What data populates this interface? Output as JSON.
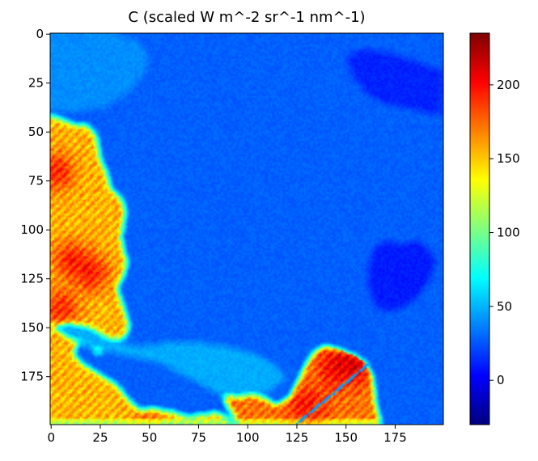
{
  "chart_data": {
    "type": "heatmap",
    "title": "C (scaled W m^-2 sr^-1 nm^-1)",
    "xlabel": "",
    "ylabel": "",
    "colormap": "jet",
    "image_shape": [
      200,
      200
    ],
    "xlim": [
      -0.5,
      199.5
    ],
    "ylim": [
      199.5,
      -0.5
    ],
    "x_ticks": [
      0,
      25,
      50,
      75,
      100,
      125,
      150,
      175
    ],
    "y_ticks": [
      0,
      25,
      50,
      75,
      100,
      125,
      150,
      175
    ],
    "x_tick_labels": [
      "0",
      "25",
      "50",
      "75",
      "100",
      "125",
      "150",
      "175"
    ],
    "y_tick_labels": [
      "0",
      "25",
      "50",
      "75",
      "100",
      "125",
      "150",
      "175"
    ],
    "colorbar": {
      "vmin": -30,
      "vmax": 235,
      "ticks": [
        0,
        50,
        100,
        150,
        200
      ],
      "tick_labels": [
        "0",
        "50",
        "100",
        "150",
        "200"
      ]
    },
    "field": {
      "background_value": 28,
      "regions": [
        {
          "name": "left-bright-region",
          "value": 155,
          "polygon": [
            [
              0,
              42
            ],
            [
              8,
              45
            ],
            [
              12,
              47
            ],
            [
              18,
              47
            ],
            [
              22,
              50
            ],
            [
              24,
              55
            ],
            [
              25,
              62
            ],
            [
              27,
              68
            ],
            [
              29,
              72
            ],
            [
              30,
              78
            ],
            [
              34,
              82
            ],
            [
              37,
              86
            ],
            [
              38,
              92
            ],
            [
              37,
              98
            ],
            [
              36,
              104
            ],
            [
              37,
              110
            ],
            [
              39,
              116
            ],
            [
              38,
              122
            ],
            [
              36,
              126
            ],
            [
              34,
              130
            ],
            [
              36,
              136
            ],
            [
              38,
              142
            ],
            [
              40,
              150
            ],
            [
              38,
              155
            ],
            [
              30,
              158
            ],
            [
              25,
              164
            ],
            [
              20,
              160
            ],
            [
              14,
              158
            ],
            [
              12,
              164
            ],
            [
              18,
              170
            ],
            [
              26,
              175
            ],
            [
              34,
              180
            ],
            [
              40,
              188
            ],
            [
              45,
              192
            ],
            [
              50,
              196
            ],
            [
              45,
              199
            ],
            [
              0,
              199
            ]
          ]
        },
        {
          "name": "bottom-right-bright-region",
          "value": 172,
          "polygon": [
            [
              95,
              199
            ],
            [
              88,
              186
            ],
            [
              98,
              183
            ],
            [
              108,
              186
            ],
            [
              115,
              190
            ],
            [
              122,
              186
            ],
            [
              126,
              178
            ],
            [
              130,
              170
            ],
            [
              134,
              163
            ],
            [
              140,
              160
            ],
            [
              148,
              162
            ],
            [
              155,
              165
            ],
            [
              160,
              168
            ],
            [
              164,
              176
            ],
            [
              165,
              186
            ],
            [
              166,
              192
            ],
            [
              168,
              199
            ]
          ]
        },
        {
          "name": "bottom-edge-bright-strip",
          "value": 150,
          "polygon": [
            [
              50,
              199
            ],
            [
              60,
              193
            ],
            [
              70,
              196
            ],
            [
              85,
              194
            ],
            [
              95,
              199
            ]
          ]
        },
        {
          "name": "bottom-mid-region",
          "value": 168,
          "polygon": [
            [
              40,
              199
            ],
            [
              42,
              193
            ],
            [
              55,
              192
            ],
            [
              62,
              196
            ],
            [
              55,
              199
            ]
          ]
        },
        {
          "name": "top-right-dark-region",
          "value": 12,
          "polygon": [
            [
              150,
              12
            ],
            [
              160,
              8
            ],
            [
              172,
              10
            ],
            [
              185,
              14
            ],
            [
              195,
              18
            ],
            [
              199,
              18
            ],
            [
              199,
              42
            ],
            [
              190,
              40
            ],
            [
              180,
              38
            ],
            [
              170,
              36
            ],
            [
              160,
              30
            ],
            [
              154,
              22
            ]
          ]
        },
        {
          "name": "right-dark-region",
          "value": 10,
          "polygon": [
            [
              164,
              112
            ],
            [
              170,
              106
            ],
            [
              178,
              108
            ],
            [
              186,
              106
            ],
            [
              192,
              110
            ],
            [
              196,
              116
            ],
            [
              194,
              124
            ],
            [
              188,
              134
            ],
            [
              180,
              140
            ],
            [
              172,
              142
            ],
            [
              166,
              140
            ],
            [
              162,
              130
            ],
            [
              162,
              120
            ]
          ]
        },
        {
          "name": "lower-mid-light-region",
          "value": 48,
          "polygon": [
            [
              0,
              150
            ],
            [
              10,
              148
            ],
            [
              20,
              150
            ],
            [
              28,
              155
            ],
            [
              45,
              160
            ],
            [
              60,
              158
            ],
            [
              75,
              158
            ],
            [
              90,
              160
            ],
            [
              105,
              164
            ],
            [
              115,
              170
            ],
            [
              120,
              176
            ],
            [
              110,
              184
            ],
            [
              95,
              186
            ],
            [
              85,
              184
            ],
            [
              70,
              176
            ],
            [
              55,
              168
            ],
            [
              40,
              165
            ],
            [
              25,
              162
            ],
            [
              10,
              156
            ]
          ]
        },
        {
          "name": "upper-left-light-region",
          "value": 40,
          "polygon": [
            [
              0,
              0
            ],
            [
              30,
              0
            ],
            [
              45,
              4
            ],
            [
              50,
              12
            ],
            [
              48,
              22
            ],
            [
              40,
              30
            ],
            [
              28,
              38
            ],
            [
              12,
              40
            ],
            [
              0,
              40
            ]
          ]
        }
      ],
      "hotspots": [
        {
          "x": 2,
          "y": 70,
          "value": 205
        },
        {
          "x": 10,
          "y": 115,
          "value": 200
        },
        {
          "x": 20,
          "y": 122,
          "value": 205
        },
        {
          "x": 5,
          "y": 140,
          "value": 200
        },
        {
          "x": 145,
          "y": 170,
          "value": 210
        },
        {
          "x": 155,
          "y": 168,
          "value": 220
        },
        {
          "x": 130,
          "y": 190,
          "value": 205
        }
      ],
      "stripe": {
        "from": [
          125,
          199
        ],
        "to": [
          162,
          168
        ],
        "value": 45
      }
    }
  },
  "colors": {
    "frame": "#000000",
    "background": "#ffffff"
  }
}
